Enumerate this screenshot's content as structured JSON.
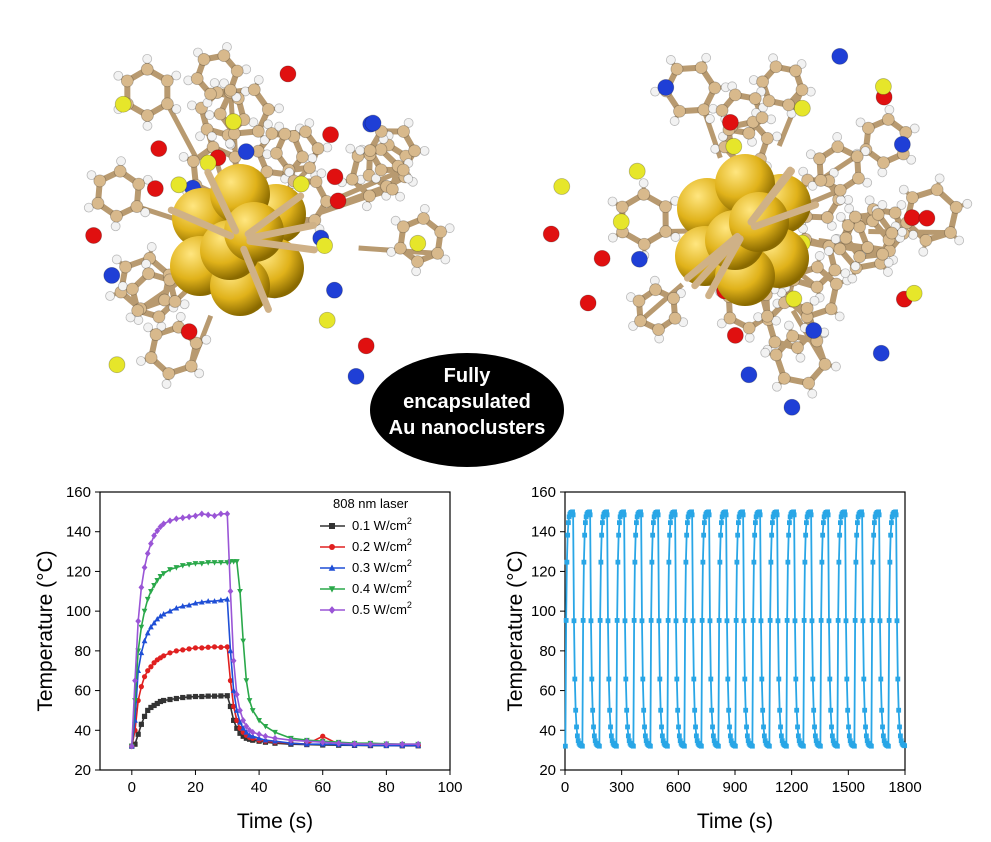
{
  "callout": {
    "line1": "Fully",
    "line2": "encapsulated",
    "line3": "Au nanoclusters"
  },
  "colors": {
    "carbon": "#d8b98c",
    "hydrogen": "#f2f2f2",
    "oxygen": "#e01010",
    "nitrogen": "#1f3fd6",
    "sulfur": "#e6e62a",
    "gold": "#e0b21a",
    "cycle": "#29a6e6"
  },
  "chart_data": [
    {
      "type": "line",
      "title": "",
      "xlabel": "Time (s)",
      "ylabel": "Temperature (°C)",
      "xlim": [
        -10,
        100
      ],
      "ylim": [
        20,
        160
      ],
      "xticks": [
        0,
        20,
        40,
        60,
        80,
        100
      ],
      "yticks": [
        20,
        40,
        60,
        80,
        100,
        120,
        140,
        160
      ],
      "legend_title": "808 nm laser",
      "legend_position": "top-right",
      "grid": false,
      "x": [
        0,
        1,
        2,
        3,
        4,
        5,
        6,
        7,
        8,
        9,
        10,
        12,
        14,
        16,
        18,
        20,
        22,
        24,
        26,
        28,
        30,
        31,
        32,
        33,
        34,
        35,
        36,
        37,
        38,
        40,
        42,
        45,
        50,
        55,
        60,
        65,
        70,
        75,
        80,
        85,
        90
      ],
      "series": [
        {
          "name": "0.1 W/cm",
          "unit_sup": "2",
          "color": "#333333",
          "marker": "square",
          "values": [
            32,
            33,
            38,
            43,
            47,
            50,
            51.5,
            52.5,
            53.5,
            54.5,
            55,
            55.5,
            56,
            56.5,
            56.8,
            57,
            57,
            57.2,
            57.2,
            57.3,
            57.4,
            52,
            45,
            41,
            38.5,
            37,
            36,
            35.5,
            35,
            34.5,
            34,
            33.5,
            33,
            32.8,
            32.6,
            32.5,
            32.4,
            32.3,
            32.3,
            32.2,
            32.2
          ]
        },
        {
          "name": "0.2 W/cm",
          "unit_sup": "2",
          "color": "#e02020",
          "marker": "circle",
          "values": [
            32,
            40,
            55,
            62,
            67,
            70,
            72,
            74,
            75.5,
            76.5,
            77.5,
            79,
            80,
            80.5,
            81,
            81.5,
            81.5,
            81.8,
            82,
            81.8,
            82,
            65,
            52,
            45,
            41,
            39,
            37.5,
            36.5,
            36,
            35,
            34.5,
            34,
            33.5,
            33,
            37,
            33,
            32.5,
            32.5,
            32.5,
            32.3,
            32.3
          ]
        },
        {
          "name": "0.3 W/cm",
          "unit_sup": "2",
          "color": "#1f4fd6",
          "marker": "triangle-up",
          "values": [
            32,
            45,
            70,
            79,
            85,
            89,
            92,
            94,
            96,
            97.5,
            98.5,
            100,
            101.5,
            102.5,
            103,
            104,
            104.5,
            105,
            105,
            105.5,
            106,
            80,
            60,
            50,
            44,
            41,
            39,
            37.5,
            37,
            36,
            35,
            34.5,
            33.5,
            33,
            33,
            32.8,
            32.5,
            32.5,
            32.3,
            32.3,
            32.3
          ]
        },
        {
          "name": "0.4 W/cm",
          "unit_sup": "2",
          "color": "#2aa84a",
          "marker": "triangle-down",
          "values": [
            32,
            55,
            80,
            92,
            100,
            106,
            110,
            113,
            115.5,
            117.5,
            119,
            121,
            122,
            123,
            123.5,
            124,
            124,
            124.5,
            124.5,
            124.5,
            124.5,
            125,
            125,
            125,
            110,
            85,
            65,
            55,
            50,
            45,
            42,
            39,
            36,
            35,
            34.5,
            34,
            33.5,
            33.5,
            33.2,
            33,
            33
          ]
        },
        {
          "name": "0.5 W/cm",
          "unit_sup": "2",
          "color": "#9a55d6",
          "marker": "diamond",
          "values": [
            32,
            65,
            95,
            112,
            122,
            129,
            134,
            138,
            140.5,
            142.5,
            144,
            145.5,
            146.5,
            147,
            147.5,
            148,
            149,
            148.5,
            148,
            149,
            149,
            110,
            75,
            58,
            50,
            45,
            42,
            40,
            39,
            38,
            37,
            36,
            35,
            34.5,
            34,
            33.5,
            33.2,
            33,
            33,
            33,
            33
          ]
        }
      ]
    },
    {
      "type": "line",
      "title": "",
      "xlabel": "Time (s)",
      "ylabel": "Temperature (°C)",
      "xlim": [
        0,
        1800
      ],
      "ylim": [
        20,
        160
      ],
      "xticks": [
        0,
        300,
        600,
        900,
        1200,
        1500,
        1800
      ],
      "yticks": [
        20,
        40,
        60,
        80,
        100,
        120,
        140,
        160
      ],
      "grid": false,
      "cycles": 20,
      "cycle_period_s": 85,
      "cycle_min": 32,
      "cycle_max": 150,
      "color": "#29a6e6",
      "marker": "square"
    }
  ]
}
